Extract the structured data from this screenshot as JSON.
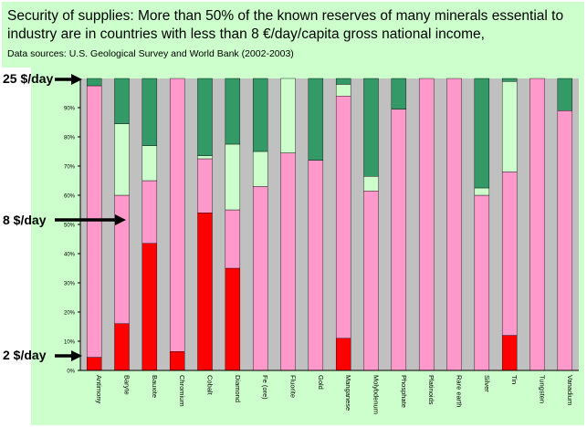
{
  "title": "Security of supplies: More than 50% of the known reserves of many minerals essential to industry are in  countries with less than 8 €/day/capita gross national income,",
  "source": "Data sources: U.S. Geological Survey and World Bank (2002-2003)",
  "side_labels": [
    "25 $/day",
    "8 $/day",
    "2 $/day"
  ],
  "colors": {
    "under_2": "#ff0000",
    "2_to_8": "#ff99cc",
    "8_to_25": "#ccffcc",
    "over_25": "#339966",
    "plot_bg": "#c0c0c0",
    "page_bg": "#ccffcc"
  },
  "chart_data": {
    "type": "bar",
    "stacked": true,
    "ylim": [
      0,
      100
    ],
    "yticks": [
      "0%",
      "10%",
      "20%",
      "30%",
      "40%",
      "50%",
      "60%",
      "70%",
      "80%",
      "90%"
    ],
    "categories": [
      "Antimony",
      "Baryte",
      "Bauxite",
      "Chromium",
      "Cobalt",
      "Diamond",
      "Fe (ore)",
      "Fluorite",
      "Gold",
      "Manganese",
      "Molybdenum",
      "Phosphate",
      "Platinoids",
      "Rare earth",
      "Silver",
      "Tin",
      "Tungsten",
      "Vanadium"
    ],
    "series": [
      {
        "values": [
          4.5,
          16,
          43.5,
          6.5,
          54,
          35,
          0,
          0,
          0,
          11,
          0,
          0,
          0,
          0,
          0,
          12,
          0,
          0
        ]
      },
      {
        "values": [
          93,
          44,
          21.5,
          93.5,
          18.5,
          20,
          63,
          74.5,
          72,
          83,
          61.5,
          89.5,
          100,
          100,
          60,
          56,
          100,
          89
        ]
      },
      {
        "values": [
          0,
          24.5,
          12,
          0,
          1,
          22.5,
          12,
          25.5,
          0,
          4,
          5,
          0,
          0,
          0,
          2.5,
          31,
          0,
          0
        ]
      },
      {
        "values": [
          2.5,
          15.5,
          23,
          0,
          26.5,
          22.5,
          25,
          0,
          28,
          2,
          33.5,
          10.5,
          0,
          0,
          37.5,
          1,
          0,
          11
        ]
      }
    ]
  }
}
